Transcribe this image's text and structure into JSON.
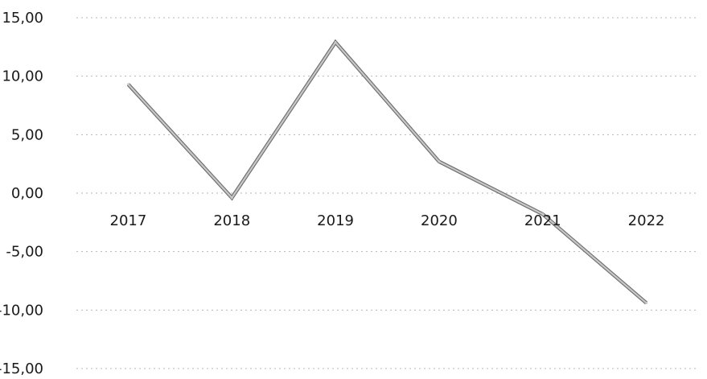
{
  "chart_data": {
    "type": "line",
    "title": "",
    "xlabel": "",
    "ylabel": "",
    "categories": [
      "2017",
      "2018",
      "2019",
      "2020",
      "2021",
      "2022"
    ],
    "series": [
      {
        "values": [
          9.3,
          -0.4,
          12.9,
          2.7,
          -1.8,
          -9.4
        ]
      }
    ],
    "ylim": [
      -15,
      15
    ],
    "y_ticks": [
      "15,00",
      "10,00",
      "5,00",
      "0,00",
      "-5,00",
      "-10,00",
      "-15,00"
    ],
    "y_tick_values": [
      15,
      10,
      5,
      0,
      -5,
      -10,
      -15
    ],
    "grid": true,
    "legend": "none",
    "colors": {
      "line": "#c8c8c8",
      "line_outline": "#6e6e6e",
      "grid": "#b5b5b5",
      "text": "#1a1a1a"
    }
  }
}
